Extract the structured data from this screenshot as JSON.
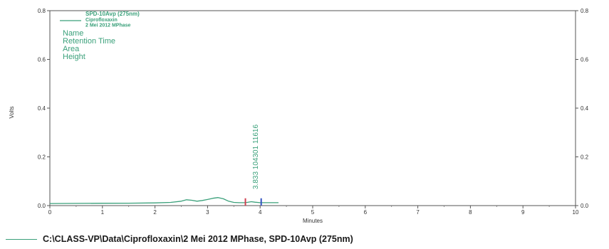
{
  "chart_data": {
    "type": "line",
    "xlabel": "Minutes",
    "ylabel": "Volts",
    "xlim": [
      0,
      10
    ],
    "ylim": [
      0,
      0.8
    ],
    "x_ticks": [
      "0",
      "1",
      "2",
      "3",
      "4",
      "5",
      "6",
      "7",
      "8",
      "9",
      "10"
    ],
    "y_ticks_left": [
      "0.0",
      "0.2",
      "0.4",
      "0.6",
      "0.8"
    ],
    "y_ticks_right": [
      "0.0",
      "0.2",
      "0.4",
      "0.6",
      "0.8"
    ],
    "grid": false,
    "line_color": "#3aa07a",
    "series": [
      {
        "name": "SPD-10Avp (275nm)",
        "x": [
          0.0,
          0.5,
          1.0,
          1.5,
          2.0,
          2.3,
          2.5,
          2.6,
          2.7,
          2.8,
          2.9,
          3.0,
          3.1,
          3.2,
          3.3,
          3.4,
          3.5,
          3.6,
          3.7,
          3.75,
          3.833,
          3.9,
          4.0,
          4.1,
          4.2,
          4.35
        ],
        "y": [
          0.0085,
          0.009,
          0.0095,
          0.01,
          0.011,
          0.013,
          0.018,
          0.024,
          0.022,
          0.018,
          0.021,
          0.025,
          0.03,
          0.033,
          0.028,
          0.018,
          0.013,
          0.012,
          0.012,
          0.013,
          0.016,
          0.014,
          0.012,
          0.012,
          0.012,
          0.012
        ]
      }
    ],
    "legend": {
      "title": "SPD-10Avp (275nm)",
      "lines": [
        "Ciprofloxaxin",
        "2 Mei 2012 MPhase"
      ],
      "position": "top-left"
    },
    "fields": [
      "Name",
      "Retention Time",
      "Area",
      "Height"
    ],
    "peaks": [
      {
        "retention_time": 3.833,
        "label": "3.833  104301  11616"
      }
    ],
    "baseline_marks": [
      {
        "x": 3.72,
        "color": "#d04050"
      },
      {
        "x": 4.02,
        "color": "#3050c0"
      }
    ]
  },
  "footer": {
    "text": "C:\\CLASS-VP\\Data\\Ciprofloxaxin\\2 Mei 2012 MPhase, SPD-10Avp (275nm)"
  }
}
